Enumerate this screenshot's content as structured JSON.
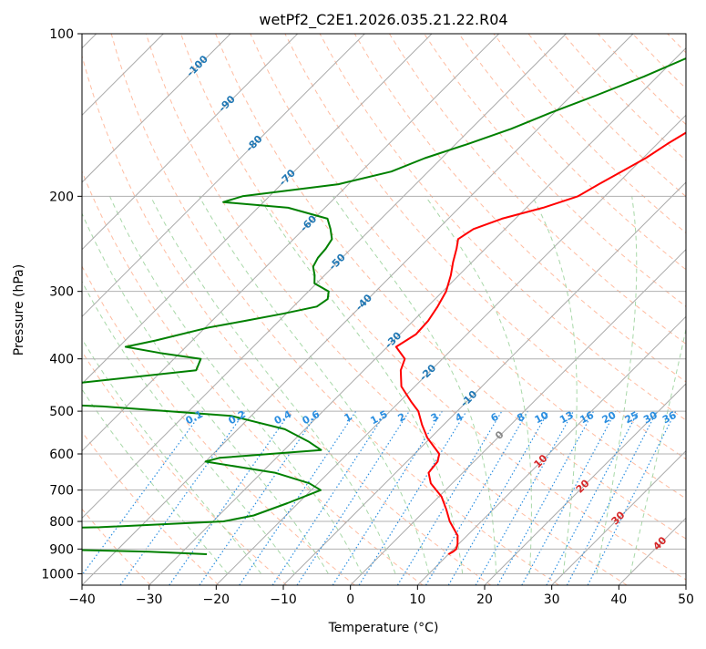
{
  "chart_data": {
    "type": "line",
    "title": "wetPf2_C2E1.2026.035.21.22.R04",
    "xlabel": "Temperature (°C)",
    "ylabel": "Pressure (hPa)",
    "xlim": [
      -40,
      50
    ],
    "ylim": [
      1050,
      100
    ],
    "y_scale": "log",
    "x_ticks": [
      -40,
      -30,
      -20,
      -10,
      0,
      10,
      20,
      30,
      40,
      50
    ],
    "y_ticks": [
      100,
      200,
      300,
      400,
      500,
      600,
      700,
      800,
      900,
      1000
    ],
    "grid": true,
    "skew_degrees": 45,
    "colors": {
      "temperature": "#ff0000",
      "dewpoint": "#008000",
      "isotherm": "#aaaaaa",
      "dry_adiabat": "#ffb090",
      "moist_adiabat": "#a8d8a8",
      "mixing_ratio": "#2a8ee0",
      "isotherm_label": "#1f77b4",
      "positive_isotherm_label": "#d62728"
    },
    "series": [
      {
        "role": "temperature",
        "points": [
          [
            -7.5,
            100
          ],
          [
            -10.3,
            110
          ],
          [
            -11.5,
            120
          ],
          [
            -12.8,
            130
          ],
          [
            -14.6,
            140
          ],
          [
            -17.0,
            150
          ],
          [
            -18.5,
            160
          ],
          [
            -19.6,
            170
          ],
          [
            -21.2,
            180
          ],
          [
            -22.7,
            190
          ],
          [
            -24.0,
            200
          ],
          [
            -27.5,
            210
          ],
          [
            -32.0,
            220
          ],
          [
            -34.7,
            230
          ],
          [
            -35.5,
            240
          ],
          [
            -34.3,
            250
          ],
          [
            -32.8,
            265
          ],
          [
            -31.2,
            280
          ],
          [
            -29.5,
            300
          ],
          [
            -28.5,
            320
          ],
          [
            -27.8,
            340
          ],
          [
            -27.6,
            360
          ],
          [
            -28.7,
            380
          ],
          [
            -25.6,
            400
          ],
          [
            -24.5,
            420
          ],
          [
            -22.0,
            450
          ],
          [
            -18.3,
            480
          ],
          [
            -15.8,
            500
          ],
          [
            -13.2,
            530
          ],
          [
            -10.5,
            560
          ],
          [
            -6.3,
            600
          ],
          [
            -5.4,
            620
          ],
          [
            -5.2,
            640
          ],
          [
            -5.1,
            650
          ],
          [
            -3.2,
            680
          ],
          [
            0.4,
            720
          ],
          [
            3.0,
            760
          ],
          [
            5.3,
            800
          ],
          [
            8.6,
            850
          ],
          [
            9.8,
            880
          ],
          [
            10.4,
            900
          ],
          [
            10.3,
            910
          ],
          [
            10.0,
            920
          ]
        ]
      },
      {
        "role": "dewpoint",
        "points": [
          [
            -24.9,
            100
          ],
          [
            -28.0,
            110
          ],
          [
            -32.0,
            120
          ],
          [
            -36.3,
            130
          ],
          [
            -40.5,
            140
          ],
          [
            -44.0,
            150
          ],
          [
            -48.2,
            160
          ],
          [
            -52.5,
            170
          ],
          [
            -55.5,
            180
          ],
          [
            -61.5,
            190
          ],
          [
            -74.0,
            200
          ],
          [
            -76.0,
            205
          ],
          [
            -65.5,
            210
          ],
          [
            -58.0,
            220
          ],
          [
            -56.0,
            230
          ],
          [
            -54.3,
            240
          ],
          [
            -53.8,
            250
          ],
          [
            -53.6,
            260
          ],
          [
            -53.0,
            270
          ],
          [
            -51.5,
            280
          ],
          [
            -50.3,
            290
          ],
          [
            -47.0,
            300
          ],
          [
            -46.0,
            310
          ],
          [
            -46.5,
            320
          ],
          [
            -50.5,
            330
          ],
          [
            -55.0,
            340
          ],
          [
            -59.5,
            350
          ],
          [
            -65.5,
            370
          ],
          [
            -69.0,
            380
          ],
          [
            -63.0,
            390
          ],
          [
            -56.0,
            400
          ],
          [
            -55.0,
            420
          ],
          [
            -75.0,
            450
          ],
          [
            -99.5,
            460
          ],
          [
            -99.5,
            470
          ],
          [
            -63.5,
            490
          ],
          [
            -43.0,
            510
          ],
          [
            -33.0,
            540
          ],
          [
            -27.5,
            570
          ],
          [
            -24.5,
            590
          ],
          [
            -38.5,
            610
          ],
          [
            -40.0,
            620
          ],
          [
            -28.0,
            650
          ],
          [
            -21.3,
            680
          ],
          [
            -18.6,
            700
          ],
          [
            -21.6,
            740
          ],
          [
            -24.8,
            780
          ],
          [
            -28.4,
            800
          ],
          [
            -46.0,
            820
          ],
          [
            -70.0,
            830
          ],
          [
            -96.0,
            840
          ],
          [
            -96.0,
            870
          ],
          [
            -72.0,
            890
          ],
          [
            -53.0,
            900
          ],
          [
            -35.0,
            910
          ],
          [
            -26.0,
            920
          ]
        ]
      }
    ],
    "isotherm_labels": [
      "-100",
      "-90",
      "-80",
      "-70",
      "-60",
      "-50",
      "-40",
      "-30",
      "-20",
      "-10",
      "0",
      "10",
      "20",
      "30",
      "40"
    ],
    "isotherm_label_values": [
      -100,
      -90,
      -80,
      -70,
      -60,
      -50,
      -40,
      -30,
      -20,
      -10,
      0,
      10,
      20,
      30,
      40
    ],
    "isotherm_label_pressures": [
      115,
      135,
      160,
      185,
      225,
      265,
      315,
      370,
      425,
      475,
      555,
      620,
      690,
      790,
      880
    ],
    "mixing_ratio_labels": [
      "0.1",
      "0.2",
      "0.4",
      "0.6",
      "1",
      "1.5",
      "2",
      "3",
      "4",
      "6",
      "8",
      "10",
      "13",
      "16",
      "20",
      "25",
      "30",
      "36"
    ],
    "mixing_ratio_values": [
      0.1,
      0.2,
      0.4,
      0.6,
      1,
      1.5,
      2,
      3,
      4,
      6,
      8,
      10,
      13,
      16,
      20,
      25,
      30,
      36
    ]
  }
}
